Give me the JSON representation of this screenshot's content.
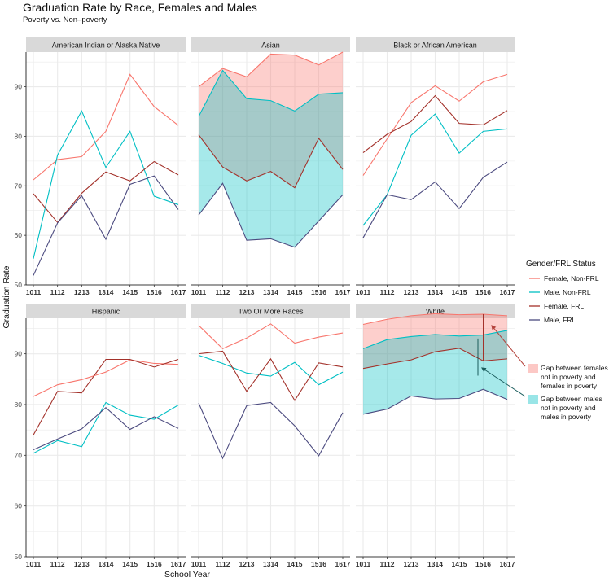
{
  "title": "Graduation Rate by Race, Females and Males",
  "subtitle": "Poverty vs. Non–poverty",
  "chart_data": {
    "type": "line",
    "xlabel": "School Year",
    "ylabel": "Graduation Rate",
    "categories": [
      "1011",
      "1112",
      "1213",
      "1314",
      "1415",
      "1516",
      "1617"
    ],
    "ylim": [
      50,
      97
    ],
    "yticks": [
      50,
      60,
      70,
      80,
      90
    ],
    "grid": true,
    "legend": {
      "title": "Gender/FRL Status",
      "position": "right",
      "entries": [
        {
          "label": "Female, Non-FRL",
          "color": "#F8766D"
        },
        {
          "label": "Male, Non-FRL",
          "color": "#00BFC4"
        },
        {
          "label": "Female, FRL",
          "color": "#A3312A"
        },
        {
          "label": "Male, FRL",
          "color": "#4B4A7F"
        }
      ],
      "gap_entries": [
        {
          "label": "Gap between females not in poverty and females in poverty",
          "lines": [
            "Gap between females",
            "not in poverty and",
            "females in poverty"
          ],
          "color": "#F8766D"
        },
        {
          "label": "Gap between males not in poverty and males in poverty",
          "lines": [
            "Gap between males",
            "not in poverty and",
            "males in poverty"
          ],
          "color": "#00BFC4"
        }
      ]
    },
    "colors": {
      "female_nonfrl": "#F8766D",
      "male_nonfrl": "#00BFC4",
      "female_frl": "#A3312A",
      "male_frl": "#4B4A7F",
      "female_gap_fill": "#F8766D",
      "male_gap_fill": "#00BFC4",
      "strip": "#d9d9d9",
      "grid": "#ebebeb"
    },
    "panels": [
      {
        "name": "American Indian or Alaska Native",
        "shaded": false,
        "series": [
          {
            "name": "Female, Non-FRL",
            "values": [
              71.2,
              75.3,
              75.9,
              81.0,
              92.5,
              86.0,
              82.2
            ]
          },
          {
            "name": "Male, Non-FRL",
            "values": [
              55.3,
              76.2,
              85.1,
              73.7,
              81.0,
              67.9,
              66.2
            ]
          },
          {
            "name": "Female, FRL",
            "values": [
              68.4,
              62.6,
              68.5,
              72.8,
              71.0,
              74.9,
              72.2
            ]
          },
          {
            "name": "Male, FRL",
            "values": [
              51.9,
              62.5,
              68.0,
              59.2,
              70.3,
              72.0,
              65.2
            ]
          }
        ]
      },
      {
        "name": "Asian",
        "shaded": true,
        "series": [
          {
            "name": "Female, Non-FRL",
            "values": [
              90.0,
              93.7,
              92.0,
              96.6,
              96.4,
              94.4,
              97.0
            ]
          },
          {
            "name": "Male, Non-FRL",
            "values": [
              84.0,
              93.3,
              87.6,
              87.2,
              85.1,
              88.5,
              88.8
            ]
          },
          {
            "name": "Female, FRL",
            "values": [
              80.3,
              73.8,
              71.0,
              72.9,
              69.6,
              79.6,
              73.3
            ]
          },
          {
            "name": "Male, FRL",
            "values": [
              64.1,
              70.5,
              59.0,
              59.3,
              57.6,
              62.9,
              68.2
            ]
          }
        ]
      },
      {
        "name": "Black or African American",
        "shaded": false,
        "series": [
          {
            "name": "Female, Non-FRL",
            "values": [
              72.1,
              79.5,
              86.8,
              90.2,
              87.1,
              91.0,
              92.5
            ]
          },
          {
            "name": "Male, Non-FRL",
            "values": [
              62.0,
              68.2,
              80.2,
              84.5,
              76.6,
              81.0,
              81.5
            ]
          },
          {
            "name": "Female, FRL",
            "values": [
              76.7,
              80.4,
              83.0,
              88.2,
              82.6,
              82.3,
              85.2
            ]
          },
          {
            "name": "Male, FRL",
            "values": [
              59.5,
              68.2,
              67.2,
              70.8,
              65.4,
              71.7,
              74.8
            ]
          }
        ]
      },
      {
        "name": "Hispanic",
        "shaded": false,
        "series": [
          {
            "name": "Female, Non-FRL",
            "values": [
              81.6,
              83.9,
              84.9,
              86.4,
              88.8,
              88.1,
              87.9
            ]
          },
          {
            "name": "Male, Non-FRL",
            "values": [
              70.4,
              72.9,
              71.7,
              80.4,
              77.9,
              77.1,
              79.9
            ]
          },
          {
            "name": "Female, FRL",
            "values": [
              74.0,
              82.6,
              82.3,
              88.9,
              88.9,
              87.4,
              88.9
            ]
          },
          {
            "name": "Male, FRL",
            "values": [
              71.1,
              73.2,
              75.2,
              79.4,
              75.1,
              77.6,
              75.3
            ]
          }
        ]
      },
      {
        "name": "Two Or More Races",
        "shaded": false,
        "series": [
          {
            "name": "Female, Non-FRL",
            "values": [
              95.6,
              91.0,
              93.1,
              95.9,
              92.1,
              93.3,
              94.1
            ]
          },
          {
            "name": "Male, Non-FRL",
            "values": [
              89.7,
              88.1,
              86.2,
              85.6,
              88.3,
              83.9,
              86.4
            ]
          },
          {
            "name": "Female, FRL",
            "values": [
              90.0,
              90.5,
              82.6,
              89.0,
              80.8,
              88.2,
              87.4
            ]
          },
          {
            "name": "Male, FRL",
            "values": [
              80.3,
              69.4,
              79.8,
              80.4,
              75.8,
              69.9,
              78.4
            ]
          }
        ]
      },
      {
        "name": "White",
        "shaded": true,
        "series": [
          {
            "name": "Female, Non-FRL",
            "values": [
              95.8,
              96.8,
              97.5,
              97.9,
              97.7,
              97.8,
              97.5
            ]
          },
          {
            "name": "Male, Non-FRL",
            "values": [
              91.0,
              92.8,
              93.4,
              93.8,
              93.5,
              93.7,
              94.6
            ]
          },
          {
            "name": "Female, FRL",
            "values": [
              87.1,
              88.0,
              88.8,
              90.4,
              91.1,
              88.6,
              89.0
            ]
          },
          {
            "name": "Male, FRL",
            "values": [
              78.1,
              79.1,
              81.7,
              81.1,
              81.2,
              83.0,
              81.0
            ]
          }
        ]
      }
    ]
  }
}
